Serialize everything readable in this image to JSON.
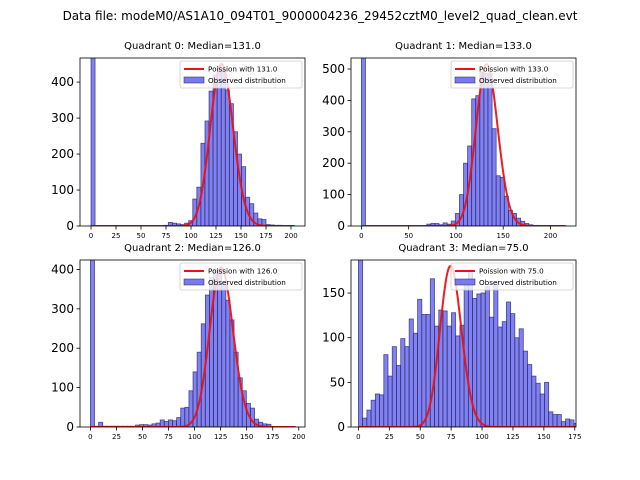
{
  "suptitle": "Data file: modeM0/AS1A10_094T01_9000004236_29452cztM0_level2_quad_clean.evt",
  "colors": {
    "bar_fill": "#7a7af0",
    "bar_edge": "#1a1a5a",
    "poisson_line": "#ee1111",
    "legend_edge": "#cccccc"
  },
  "chart_data": [
    {
      "type": "bar",
      "title": "Quadrant 0: Median=131.0",
      "xlabel": "",
      "ylabel": "",
      "xlim": [
        -11,
        214
      ],
      "ylim": [
        0,
        467
      ],
      "xticks": [
        0,
        25,
        50,
        75,
        100,
        125,
        150,
        175,
        200
      ],
      "yticks": [
        0,
        100,
        200,
        300,
        400
      ],
      "legend": {
        "location": "top-right",
        "entries": [
          "Poission with 131.0",
          "Observed distribution"
        ]
      },
      "poisson_mean": 131.0,
      "poisson_peak": 450,
      "bin_start": 0,
      "bin_width": 4.07,
      "values": [
        470,
        0,
        0,
        0,
        0,
        0,
        0,
        0,
        0,
        0,
        0,
        0,
        0,
        0,
        0,
        0,
        0,
        0,
        2,
        10,
        8,
        6,
        4,
        8,
        15,
        75,
        108,
        230,
        292,
        375,
        420,
        445,
        432,
        378,
        340,
        262,
        200,
        165,
        80,
        62,
        36,
        20,
        18,
        4,
        3,
        2,
        2,
        1,
        1,
        1
      ]
    },
    {
      "type": "bar",
      "title": "Quadrant 1: Median=133.0",
      "xlabel": "",
      "ylabel": "",
      "xlim": [
        -11,
        227
      ],
      "ylim": [
        0,
        535
      ],
      "xticks": [
        0,
        50,
        100,
        150,
        200
      ],
      "yticks": [
        0,
        100,
        200,
        300,
        400,
        500
      ],
      "legend": {
        "location": "top-right",
        "entries": [
          "Poission with 133.0",
          "Observed distribution"
        ]
      },
      "poisson_mean": 133.0,
      "poisson_peak": 515,
      "bin_start": 0,
      "bin_width": 4.32,
      "values": [
        540,
        0,
        0,
        0,
        0,
        0,
        0,
        0,
        0,
        0,
        0,
        0,
        0,
        0,
        0,
        0,
        6,
        8,
        8,
        4,
        10,
        6,
        16,
        40,
        100,
        200,
        255,
        405,
        415,
        490,
        485,
        485,
        310,
        160,
        155,
        95,
        50,
        40,
        25,
        15,
        8,
        4,
        2,
        2,
        1,
        1,
        1,
        1,
        1,
        1
      ]
    },
    {
      "type": "bar",
      "title": "Quadrant 2: Median=126.0",
      "xlabel": "",
      "ylabel": "",
      "xlim": [
        -10,
        206
      ],
      "ylim": [
        0,
        424
      ],
      "xticks": [
        0,
        25,
        50,
        75,
        100,
        125,
        150,
        175,
        200
      ],
      "yticks": [
        0,
        100,
        200,
        300,
        400
      ],
      "legend": {
        "location": "top-right",
        "entries": [
          "Poission with 126.0",
          "Observed distribution"
        ]
      },
      "poisson_mean": 126.0,
      "poisson_peak": 405,
      "bin_start": 0,
      "bin_width": 3.94,
      "values": [
        430,
        2,
        12,
        2,
        2,
        2,
        2,
        2,
        2,
        2,
        2,
        5,
        6,
        6,
        5,
        8,
        10,
        18,
        14,
        18,
        16,
        24,
        48,
        50,
        92,
        140,
        190,
        262,
        335,
        380,
        400,
        400,
        368,
        322,
        272,
        190,
        125,
        92,
        60,
        48,
        20,
        12,
        8,
        7,
        1,
        1,
        1,
        1,
        1,
        0
      ]
    },
    {
      "type": "bar",
      "title": "Quadrant 3: Median=75.0",
      "xlabel": "",
      "ylabel": "",
      "xlim": [
        -6,
        176
      ],
      "ylim": [
        0,
        187
      ],
      "xticks": [
        0,
        25,
        50,
        75,
        100,
        125,
        150,
        175
      ],
      "yticks": [
        0,
        50,
        100,
        150
      ],
      "legend": {
        "location": "top-right",
        "entries": [
          "Poission with 75.0",
          "Observed distribution"
        ]
      },
      "poisson_mean": 75.0,
      "poisson_peak": 180,
      "bin_start": 0,
      "bin_width": 3.42,
      "values": [
        190,
        10,
        19,
        30,
        37,
        36,
        81,
        57,
        90,
        69,
        99,
        90,
        121,
        105,
        143,
        126,
        126,
        166,
        113,
        131,
        130,
        113,
        128,
        102,
        114,
        160,
        175,
        144,
        149,
        150,
        157,
        123,
        162,
        112,
        118,
        140,
        127,
        100,
        110,
        85,
        70,
        57,
        49,
        37,
        50,
        17,
        14,
        14,
        6,
        9,
        8,
        4,
        6,
        5,
        2,
        4,
        3,
        2,
        1,
        2
      ]
    }
  ]
}
